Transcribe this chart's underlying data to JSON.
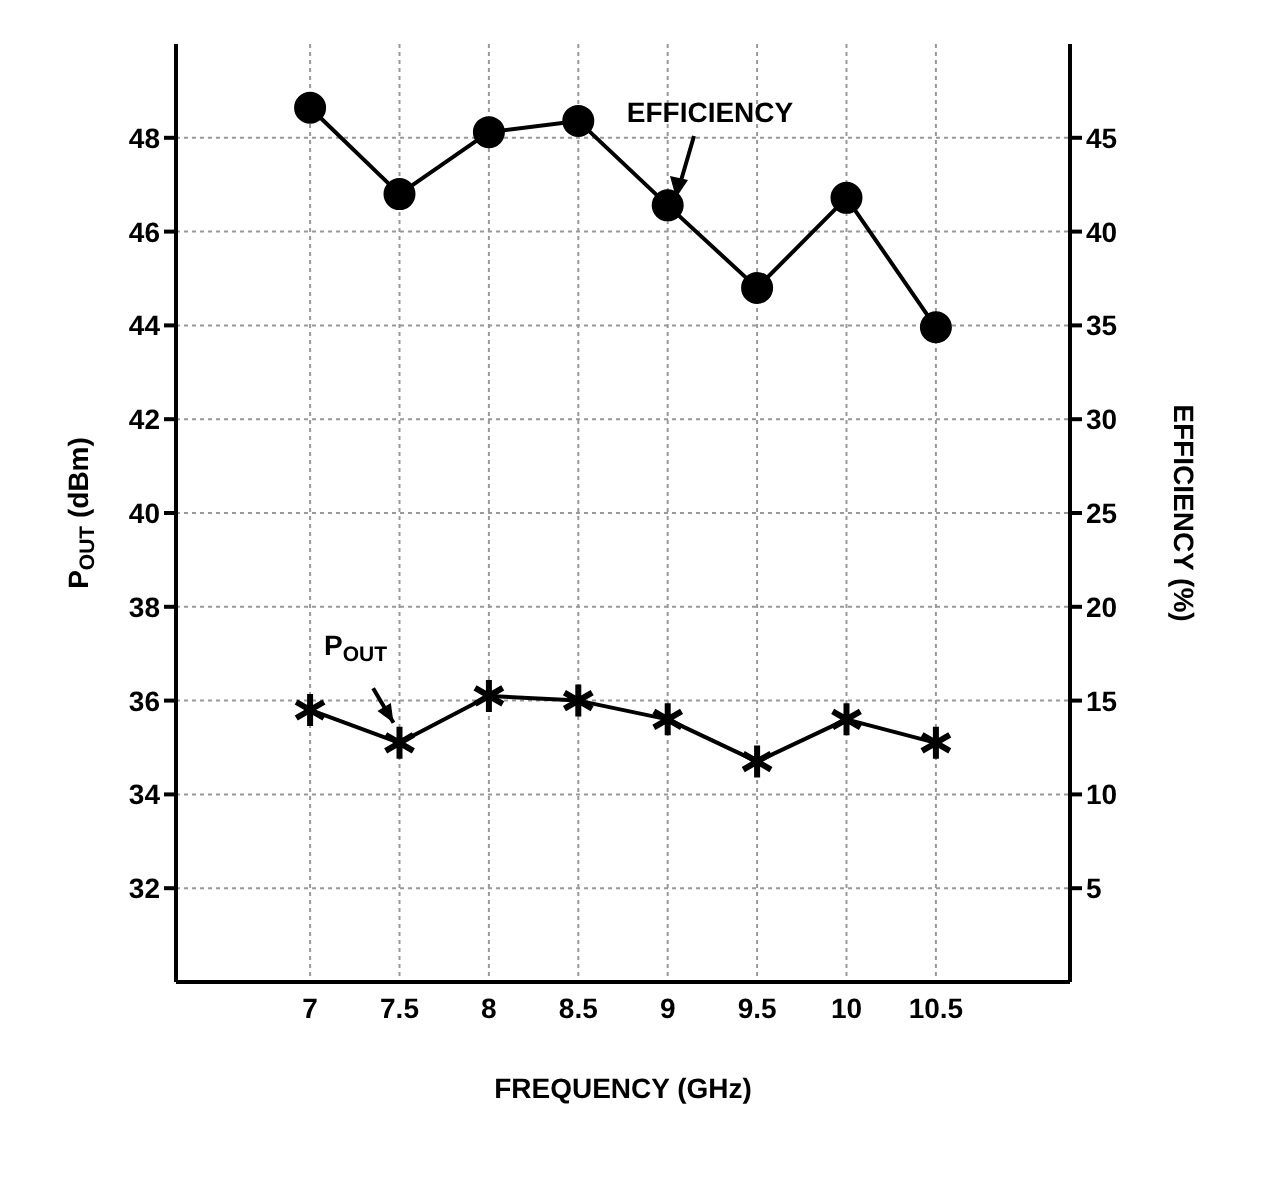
{
  "chart_data": {
    "type": "line",
    "xlabel": "FREQUENCY (GHz)",
    "ylabel": "P$_{OUT}$ (dBm)",
    "y2label": "EFFICIENCY (%)",
    "x": [
      7,
      7.5,
      8,
      8.5,
      9,
      9.5,
      10,
      10.5
    ],
    "series": [
      {
        "color": "#000000",
        "marker": "circle",
        "axis": "y2",
        "values": [
          46.6,
          42.0,
          45.3,
          45.9,
          41.4,
          37.0,
          41.8,
          34.9
        ]
      },
      {
        "color": "#000000",
        "marker": "cross",
        "values": [
          35.8,
          35.1,
          36.1,
          36.0,
          35.6,
          34.7,
          35.6,
          35.1
        ]
      }
    ],
    "xlim": [
      6.25,
      11.25
    ],
    "xticks": [
      7,
      7.5,
      8,
      8.5,
      9,
      9.5,
      10,
      10.5
    ],
    "ylim": [
      30,
      50
    ],
    "yticks": [
      32,
      34,
      36,
      38,
      40,
      42,
      44,
      46,
      48
    ],
    "y2lim": [
      0,
      50
    ],
    "y2ticks": [
      5,
      10,
      15,
      20,
      25,
      30,
      35,
      40,
      45
    ],
    "grid": true,
    "line_style": "solid",
    "annotations": [
      "EFFICIENCY",
      {
        "text": "P$_{OUT}$",
        "x": 7.5,
        "y": 35.1
      }
    ]
  }
}
